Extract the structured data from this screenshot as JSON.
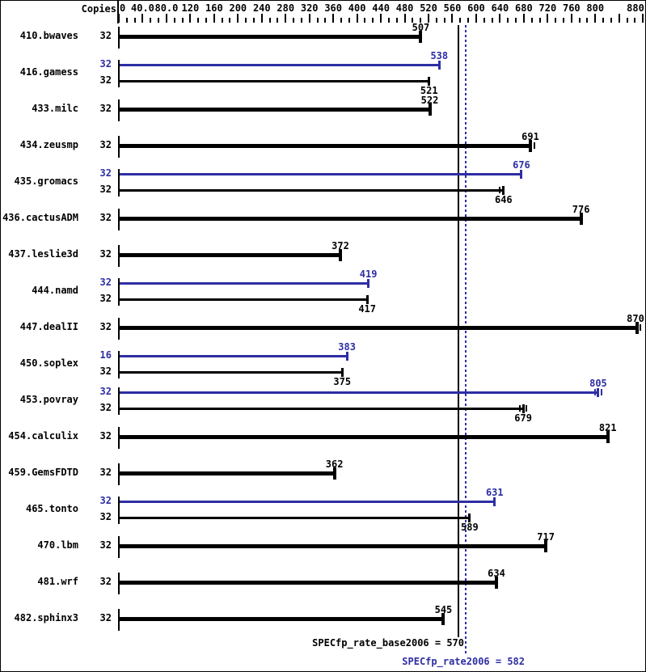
{
  "chart_data": {
    "type": "bar",
    "orientation": "horizontal",
    "title": "",
    "copies_label": "Copies",
    "axis": {
      "min": 0,
      "max": 884,
      "major_step": 40,
      "minor_divisions_per_major": 3,
      "labels": [
        {
          "value": 0,
          "text": "0"
        },
        {
          "value": 40,
          "text": "40.0"
        },
        {
          "value": 80,
          "text": "80.0"
        },
        {
          "value": 120,
          "text": "120"
        },
        {
          "value": 160,
          "text": "160"
        },
        {
          "value": 200,
          "text": "200"
        },
        {
          "value": 240,
          "text": "240"
        },
        {
          "value": 280,
          "text": "280"
        },
        {
          "value": 320,
          "text": "320"
        },
        {
          "value": 360,
          "text": "360"
        },
        {
          "value": 400,
          "text": "400"
        },
        {
          "value": 440,
          "text": "440"
        },
        {
          "value": 480,
          "text": "480"
        },
        {
          "value": 520,
          "text": "520"
        },
        {
          "value": 560,
          "text": "560"
        },
        {
          "value": 600,
          "text": "600"
        },
        {
          "value": 640,
          "text": "640"
        },
        {
          "value": 680,
          "text": "680"
        },
        {
          "value": 720,
          "text": "720"
        },
        {
          "value": 760,
          "text": "760"
        },
        {
          "value": 800,
          "text": "800"
        },
        {
          "value": 880,
          "text": "880"
        }
      ]
    },
    "benchmarks": [
      {
        "name": "410.bwaves",
        "bars": [
          {
            "copies": "32",
            "value": 507,
            "color": "black",
            "style": "thick",
            "label_position": "above"
          }
        ]
      },
      {
        "name": "416.gamess",
        "bars": [
          {
            "copies": "32",
            "value": 538,
            "color": "blue",
            "style": "thin",
            "label_position": "above"
          },
          {
            "copies": "32",
            "value": 521,
            "color": "black",
            "style": "thin",
            "label_position": "below"
          }
        ]
      },
      {
        "name": "433.milc",
        "bars": [
          {
            "copies": "32",
            "value": 522,
            "color": "black",
            "style": "thick",
            "label_position": "above"
          }
        ]
      },
      {
        "name": "434.zeusmp",
        "bars": [
          {
            "copies": "32",
            "value": 691,
            "color": "black",
            "style": "thick",
            "label_position": "above",
            "run_ticks": [
              698
            ]
          }
        ]
      },
      {
        "name": "435.gromacs",
        "bars": [
          {
            "copies": "32",
            "value": 676,
            "color": "blue",
            "style": "thin",
            "label_position": "above"
          },
          {
            "copies": "32",
            "value": 646,
            "color": "black",
            "style": "thin",
            "label_position": "below",
            "run_ticks": [
              640
            ]
          }
        ]
      },
      {
        "name": "436.cactusADM",
        "bars": [
          {
            "copies": "32",
            "value": 776,
            "color": "black",
            "style": "thick",
            "label_position": "above"
          }
        ]
      },
      {
        "name": "437.leslie3d",
        "bars": [
          {
            "copies": "32",
            "value": 372,
            "color": "black",
            "style": "thick",
            "label_position": "above"
          }
        ]
      },
      {
        "name": "444.namd",
        "bars": [
          {
            "copies": "32",
            "value": 419,
            "color": "blue",
            "style": "thin",
            "label_position": "above"
          },
          {
            "copies": "32",
            "value": 417,
            "color": "black",
            "style": "thin",
            "label_position": "below"
          }
        ]
      },
      {
        "name": "447.dealII",
        "bars": [
          {
            "copies": "32",
            "value": 870,
            "color": "black",
            "style": "thick",
            "label_position": "above",
            "run_ticks": [
              876
            ]
          }
        ]
      },
      {
        "name": "450.soplex",
        "bars": [
          {
            "copies": "16",
            "value": 383,
            "color": "blue",
            "style": "thin",
            "label_position": "above"
          },
          {
            "copies": "32",
            "value": 375,
            "color": "black",
            "style": "thin",
            "label_position": "below"
          }
        ]
      },
      {
        "name": "453.povray",
        "bars": [
          {
            "copies": "32",
            "value": 805,
            "color": "blue",
            "style": "thin",
            "label_position": "above",
            "run_ticks": [
              799,
              811
            ]
          },
          {
            "copies": "32",
            "value": 679,
            "color": "black",
            "style": "thin",
            "label_position": "below",
            "run_ticks": [
              673,
              684
            ]
          }
        ]
      },
      {
        "name": "454.calculix",
        "bars": [
          {
            "copies": "32",
            "value": 821,
            "color": "black",
            "style": "thick",
            "label_position": "above"
          }
        ]
      },
      {
        "name": "459.GemsFDTD",
        "bars": [
          {
            "copies": "32",
            "value": 362,
            "color": "black",
            "style": "thick",
            "label_position": "above"
          }
        ]
      },
      {
        "name": "465.tonto",
        "bars": [
          {
            "copies": "32",
            "value": 631,
            "color": "blue",
            "style": "thin",
            "label_position": "above"
          },
          {
            "copies": "32",
            "value": 589,
            "color": "black",
            "style": "thin",
            "label_position": "below"
          }
        ]
      },
      {
        "name": "470.lbm",
        "bars": [
          {
            "copies": "32",
            "value": 717,
            "color": "black",
            "style": "thick",
            "label_position": "above"
          }
        ]
      },
      {
        "name": "481.wrf",
        "bars": [
          {
            "copies": "32",
            "value": 634,
            "color": "black",
            "style": "thick",
            "label_position": "above"
          }
        ]
      },
      {
        "name": "482.sphinx3",
        "bars": [
          {
            "copies": "32",
            "value": 545,
            "color": "black",
            "style": "thick",
            "label_position": "above"
          }
        ]
      }
    ],
    "reference_lines": [
      {
        "id": "base",
        "value": 570,
        "style": "solid",
        "color": "black",
        "label": "SPECfp_rate_base2006 = 570"
      },
      {
        "id": "peak",
        "value": 582,
        "style": "dotted",
        "color": "blue",
        "label": "SPECfp_rate2006 = 582"
      }
    ],
    "colors": {
      "blue": "#2e2ea4",
      "black": "#000000",
      "background": "#ffffff",
      "border": "#000000"
    }
  }
}
